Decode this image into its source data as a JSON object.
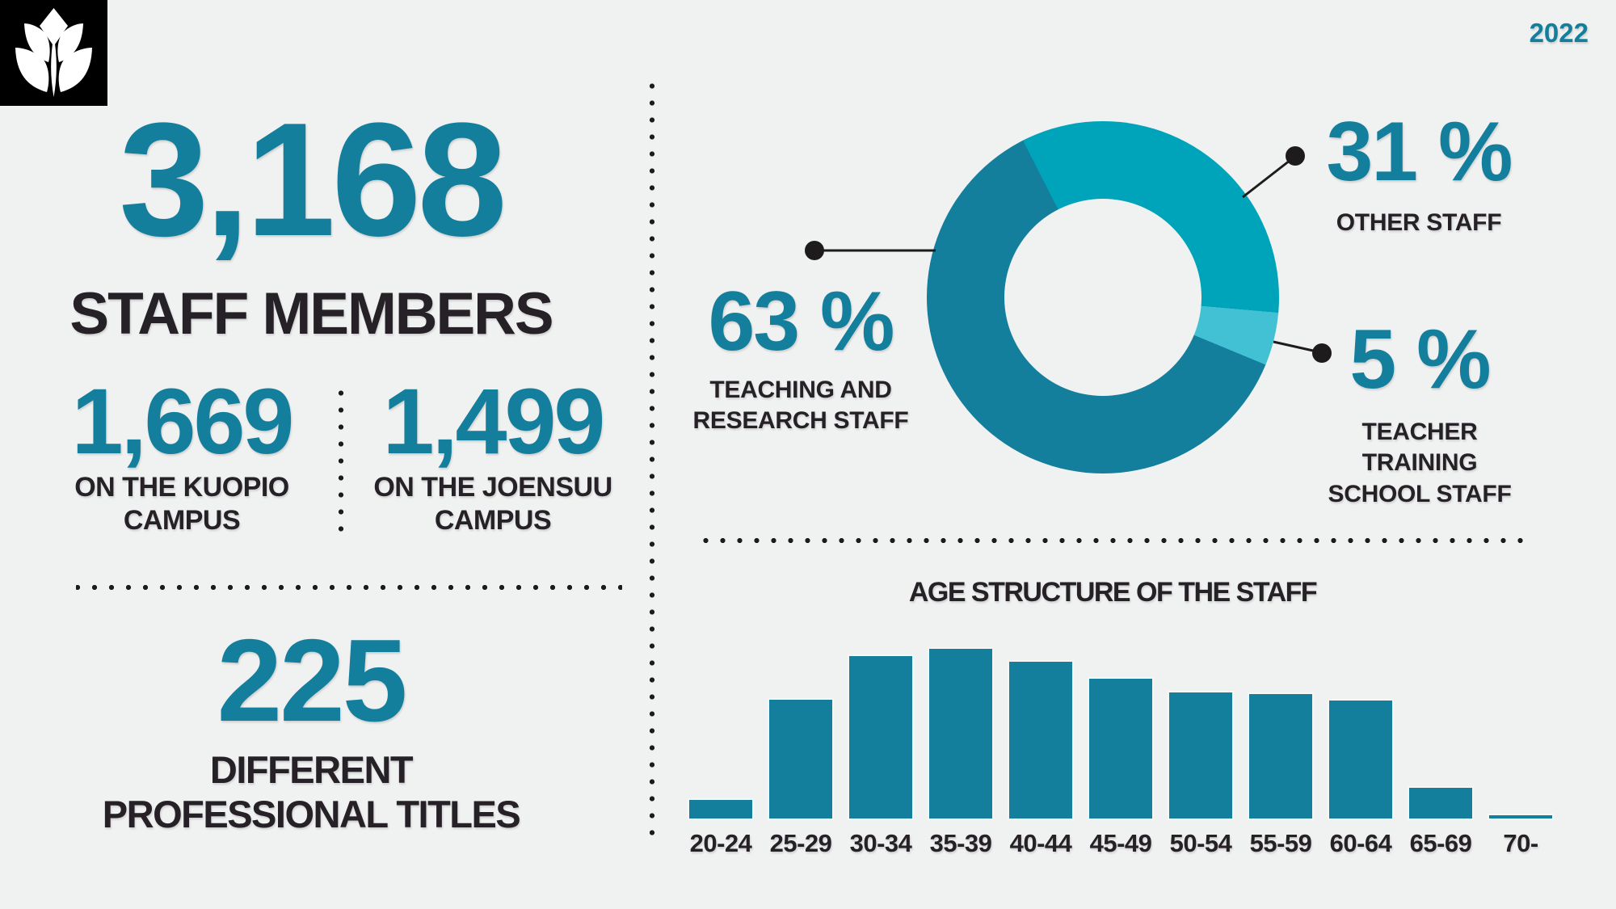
{
  "year": "2022",
  "brand": {
    "logo_icon": "uef-leaf-logo"
  },
  "colors": {
    "background": "#f0f1f1",
    "teal_primary": "#137f9d",
    "teal_medium": "#00a4ba",
    "teal_light": "#41c1d3",
    "ink": "#252126"
  },
  "left_panel": {
    "total_number": "3,168",
    "total_label": "STAFF MEMBERS",
    "campus_split": [
      {
        "value": "1,669",
        "label_lines": [
          "ON THE KUOPIO",
          "CAMPUS"
        ]
      },
      {
        "value": "1,499",
        "label_lines": [
          "ON THE JOENSUU",
          "CAMPUS"
        ]
      }
    ],
    "titles_number": "225",
    "titles_label_lines": [
      "DIFFERENT",
      "PROFESSIONAL TITLES"
    ]
  },
  "chart_data": [
    {
      "type": "pie",
      "subtype": "donut",
      "legend_position": "callouts",
      "slices": [
        {
          "name": "TEACHING AND RESEARCH STAFF",
          "pct": 63,
          "pct_label": "63 %",
          "label_lines": [
            "TEACHING AND",
            "RESEARCH STAFF"
          ],
          "color": "#137f9d"
        },
        {
          "name": "OTHER STAFF",
          "pct": 31,
          "pct_label": "31 %",
          "label_lines": [
            "OTHER STAFF"
          ],
          "color": "#00a4ba"
        },
        {
          "name": "TEACHER TRAINING SCHOOL STAFF",
          "pct": 5,
          "pct_label": "5 %",
          "label_lines": [
            "TEACHER",
            "TRAINING",
            "SCHOOL STAFF"
          ],
          "color": "#41c1d3"
        }
      ]
    },
    {
      "type": "bar",
      "title": "AGE STRUCTURE OF THE STAFF",
      "categories": [
        "20-24",
        "25-29",
        "30-34",
        "35-39",
        "40-44",
        "45-49",
        "50-54",
        "55-59",
        "60-64",
        "65-69",
        "70-"
      ],
      "values": [
        23,
        147,
        201,
        210,
        194,
        173,
        156,
        154,
        146,
        38,
        4
      ],
      "value_note": "no value axis shown in source; values are relative bar heights in px (tallest = 35-39)",
      "xlabel": "",
      "ylabel": "",
      "grid": false,
      "bar_color": "#137f9d"
    }
  ]
}
